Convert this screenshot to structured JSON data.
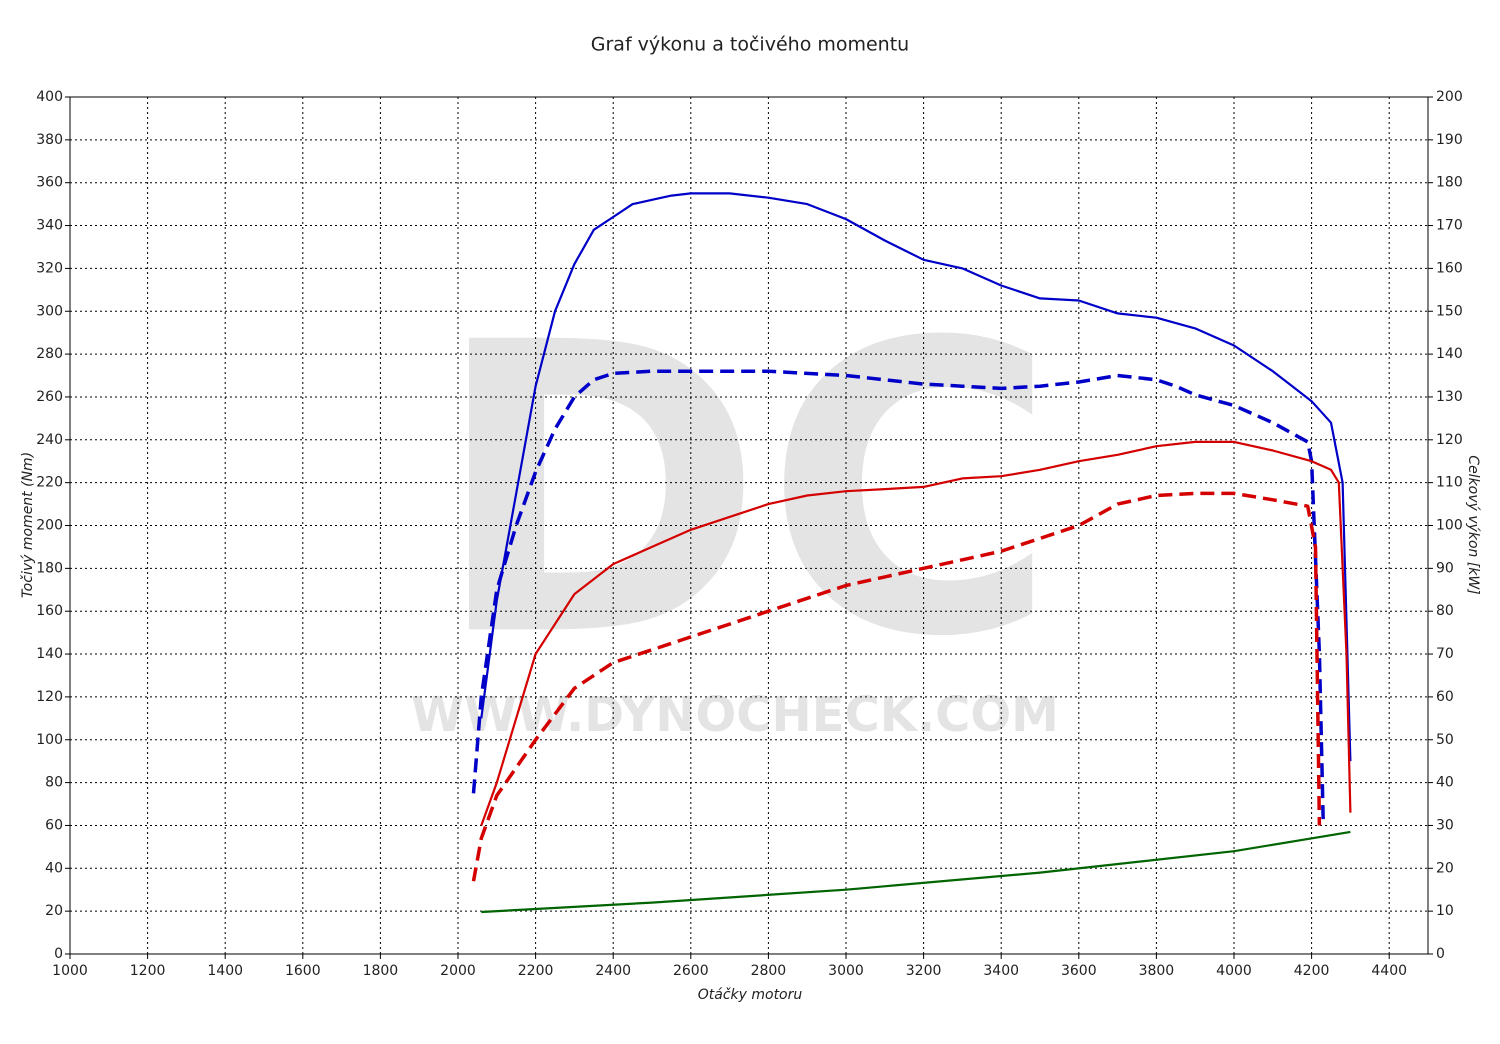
{
  "chart_data": {
    "type": "line",
    "title": "Graf výkonu a točivého momentu",
    "x_label": "Otáčky motoru",
    "y_label": "Točivý moment (Nm)",
    "y2_label": "Celkový výkon [kW]",
    "watermark": "DC",
    "watermark_url": "WWW.DYNOCHECK.COM",
    "xlim": [
      1000,
      4500
    ],
    "xticks": [
      1000,
      1200,
      1400,
      1600,
      1800,
      2000,
      2200,
      2400,
      2600,
      2800,
      3000,
      3200,
      3400,
      3600,
      3800,
      4000,
      4200,
      4400
    ],
    "ylim": [
      0,
      400
    ],
    "yticks": [
      0,
      20,
      40,
      60,
      80,
      100,
      120,
      140,
      160,
      180,
      200,
      220,
      240,
      260,
      280,
      300,
      320,
      340,
      360,
      380,
      400
    ],
    "y2lim": [
      0,
      200
    ],
    "y2ticks": [
      0,
      10,
      20,
      30,
      40,
      50,
      60,
      70,
      80,
      90,
      100,
      110,
      120,
      130,
      140,
      150,
      160,
      170,
      180,
      190,
      200
    ],
    "grid": true,
    "series": [
      {
        "color": "#0000c8",
        "dashed": false,
        "axis": "y",
        "x": [
          2060,
          2100,
          2150,
          2200,
          2250,
          2300,
          2350,
          2400,
          2450,
          2500,
          2550,
          2600,
          2700,
          2800,
          2900,
          3000,
          3100,
          3200,
          3300,
          3400,
          3500,
          3600,
          3700,
          3800,
          3900,
          4000,
          4100,
          4200,
          4250,
          4280,
          4300
        ],
        "values": [
          110,
          165,
          215,
          265,
          300,
          322,
          338,
          344,
          350,
          352,
          354,
          355,
          355,
          353,
          350,
          343,
          333,
          324,
          320,
          312,
          306,
          305,
          299,
          297,
          292,
          284,
          272,
          258,
          248,
          220,
          90
        ]
      },
      {
        "color": "#0000c8",
        "dashed": true,
        "axis": "y",
        "x": [
          2040,
          2060,
          2100,
          2150,
          2200,
          2250,
          2300,
          2350,
          2400,
          2500,
          2600,
          2700,
          2800,
          2900,
          3000,
          3100,
          3200,
          3300,
          3400,
          3500,
          3600,
          3700,
          3800,
          3850,
          3900,
          4000,
          4100,
          4190,
          4200,
          4220,
          4230
        ],
        "values": [
          75,
          120,
          170,
          200,
          225,
          245,
          260,
          268,
          271,
          272,
          272,
          272,
          272,
          271,
          270,
          268,
          266,
          265,
          264,
          265,
          267,
          270,
          268,
          265,
          261,
          256,
          248,
          239,
          230,
          140,
          62
        ]
      },
      {
        "color": "#d40000",
        "dashed": false,
        "axis": "y2",
        "x": [
          2060,
          2100,
          2200,
          2300,
          2400,
          2500,
          2600,
          2700,
          2800,
          2900,
          3000,
          3100,
          3200,
          3300,
          3400,
          3500,
          3600,
          3700,
          3800,
          3900,
          4000,
          4100,
          4200,
          4250,
          4270,
          4290,
          4300
        ],
        "values": [
          30,
          40,
          70,
          84,
          91,
          95,
          99,
          102,
          105,
          107,
          108,
          108.5,
          109,
          111,
          111.5,
          113,
          115,
          116.5,
          118.5,
          119.5,
          119.5,
          117.5,
          115,
          113,
          110,
          70,
          33
        ]
      },
      {
        "color": "#d40000",
        "dashed": true,
        "axis": "y2",
        "x": [
          2040,
          2060,
          2100,
          2200,
          2300,
          2400,
          2500,
          2600,
          2700,
          2800,
          2900,
          3000,
          3100,
          3200,
          3300,
          3400,
          3500,
          3600,
          3700,
          3800,
          3900,
          4000,
          4100,
          4190,
          4210,
          4220
        ],
        "values": [
          17,
          27,
          37,
          50,
          62,
          68,
          71,
          74,
          77,
          80,
          83,
          86,
          88,
          90,
          92,
          94,
          97,
          100,
          105,
          107,
          107.5,
          107.5,
          106,
          104.5,
          95,
          30
        ]
      },
      {
        "color": "#006400",
        "dashed": false,
        "axis": "y2",
        "x": [
          2060,
          2500,
          3000,
          3500,
          4000,
          4300
        ],
        "values": [
          9.8,
          12,
          15,
          19,
          24,
          28.5
        ]
      }
    ]
  }
}
